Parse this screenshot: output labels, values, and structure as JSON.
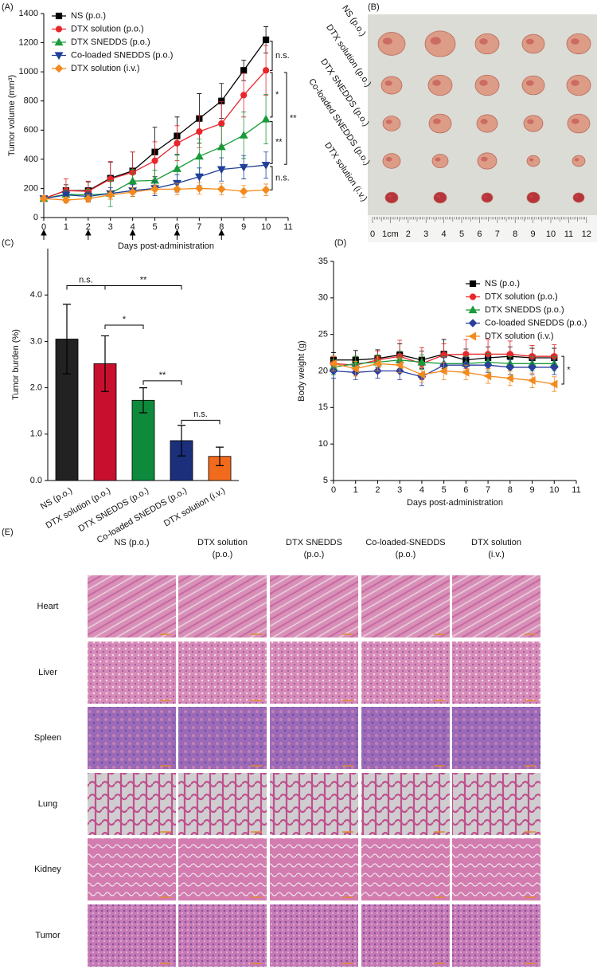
{
  "panel_labels": [
    "(A)",
    "(B)",
    "(C)",
    "(D)",
    "(E)"
  ],
  "chart_data": [
    {
      "type": "line",
      "x_label": "Days post-administration",
      "y_label": "Tumor volume (mm³)",
      "x": [
        0,
        1,
        2,
        3,
        4,
        5,
        6,
        7,
        8,
        9,
        10
      ],
      "xlim": [
        0,
        11
      ],
      "xticks": [
        0,
        1,
        2,
        3,
        4,
        5,
        6,
        7,
        8,
        9,
        10,
        11
      ],
      "ylim": [
        0,
        1400
      ],
      "yticks": [
        0,
        200,
        400,
        600,
        800,
        1000,
        1200,
        1400
      ],
      "series": [
        {
          "name": "NS (p.o.)",
          "color": "#000000",
          "marker": "square",
          "values": [
            130,
            185,
            185,
            270,
            320,
            450,
            560,
            680,
            800,
            1010,
            1220
          ],
          "errors": [
            20,
            40,
            60,
            110,
            130,
            170,
            130,
            170,
            120,
            70,
            90
          ]
        },
        {
          "name": "DTX solution (p.o.)",
          "color": "#e8262b",
          "marker": "circle",
          "values": [
            130,
            185,
            180,
            265,
            310,
            390,
            510,
            590,
            645,
            840,
            1010
          ],
          "errors": [
            20,
            80,
            70,
            120,
            140,
            130,
            120,
            110,
            150,
            150,
            170
          ]
        },
        {
          "name": "DTX SNEDDS (p.o.)",
          "color": "#1a9a3a",
          "marker": "triangle-up",
          "values": [
            130,
            160,
            155,
            165,
            250,
            255,
            335,
            420,
            485,
            565,
            675
          ],
          "errors": [
            20,
            30,
            40,
            90,
            80,
            70,
            100,
            120,
            140,
            160,
            170
          ]
        },
        {
          "name": "Co-loaded SNEDDS (p.o.)",
          "color": "#1f3f99",
          "marker": "triangle-down",
          "values": [
            130,
            155,
            145,
            165,
            185,
            200,
            235,
            280,
            330,
            345,
            360
          ],
          "errors": [
            20,
            30,
            30,
            40,
            40,
            50,
            60,
            60,
            80,
            80,
            90
          ]
        },
        {
          "name": "DTX solution (i.v.)",
          "color": "#f28a1e",
          "marker": "diamond",
          "values": [
            130,
            120,
            130,
            155,
            175,
            195,
            195,
            200,
            195,
            180,
            190
          ],
          "errors": [
            20,
            20,
            25,
            30,
            30,
            30,
            40,
            40,
            40,
            40,
            40
          ]
        }
      ],
      "dose_days": [
        0,
        2,
        4,
        6,
        8
      ],
      "brackets": [
        {
          "label": "n.s.",
          "y": [
            1210,
            1010
          ]
        },
        {
          "label": "*",
          "y": [
            995,
            690
          ]
        },
        {
          "label": "**",
          "y": [
            995,
            365
          ]
        },
        {
          "label": "**",
          "y": [
            660,
            370
          ]
        },
        {
          "label": "n.s.",
          "y": [
            350,
            190
          ]
        }
      ]
    },
    {
      "type": "bar",
      "y_label": "Tumor burden (%)",
      "categories": [
        "NS (p.o.)",
        "DTX solution (p.o.)",
        "DTX SNEDDS (p.o.)",
        "Co-loaded SNEDDS (p.o.)",
        "DTX solution (i.v.)"
      ],
      "values": [
        3.05,
        2.52,
        1.73,
        0.86,
        0.52
      ],
      "errors": [
        0.75,
        0.6,
        0.27,
        0.33,
        0.2
      ],
      "colors": [
        "#222222",
        "#c8102e",
        "#0f8a3c",
        "#1b2f7a",
        "#f26b1d"
      ],
      "ylim": [
        0,
        5
      ],
      "yticks": [
        {
          "value": 0,
          "label": "0.0"
        },
        {
          "value": 1,
          "label": "1.0"
        },
        {
          "value": 2,
          "label": "2.0"
        },
        {
          "value": 3,
          "label": "3.0"
        },
        {
          "value": 4,
          "label": "4.0"
        }
      ],
      "brackets": [
        {
          "label": "n.s.",
          "between": [
            0,
            1
          ],
          "y": 4.2
        },
        {
          "label": "**",
          "between": [
            1,
            3
          ],
          "y": 4.2
        },
        {
          "label": "*",
          "between": [
            1,
            2
          ],
          "y": 3.35
        },
        {
          "label": "**",
          "between": [
            2,
            3
          ],
          "y": 2.15
        },
        {
          "label": "n.s.",
          "between": [
            3,
            4
          ],
          "y": 1.3
        }
      ]
    },
    {
      "type": "line",
      "x_label": "Days post-administration",
      "y_label": "Body weight (g)",
      "x": [
        0,
        1,
        2,
        3,
        4,
        5,
        6,
        7,
        8,
        9,
        10
      ],
      "xlim": [
        0,
        11
      ],
      "xticks": [
        0,
        1,
        2,
        3,
        4,
        5,
        6,
        7,
        8,
        9,
        10,
        11
      ],
      "ylim": [
        5,
        35
      ],
      "yticks": [
        5,
        10,
        15,
        20,
        25,
        30,
        35
      ],
      "series": [
        {
          "name": "NS (p.o.)",
          "color": "#000000",
          "marker": "square",
          "values": [
            21.5,
            21.5,
            21.7,
            22.2,
            21.5,
            22.3,
            21.5,
            21.8,
            22,
            21.8,
            21.8
          ],
          "errors": [
            1,
            1.3,
            1.2,
            1.5,
            1.2,
            2,
            1.5,
            1.5,
            1.3,
            1.3,
            1.3
          ]
        },
        {
          "name": "DTX solution (p.o.)",
          "color": "#e8262b",
          "marker": "circle",
          "values": [
            21,
            20.8,
            21.5,
            22,
            21,
            22.2,
            22.3,
            22.3,
            22.3,
            22,
            22
          ],
          "errors": [
            1,
            1.2,
            1.2,
            2.2,
            2.2,
            1.5,
            2,
            2,
            1.8,
            1.5,
            1.6
          ]
        },
        {
          "name": "DTX SNEDDS (p.o.)",
          "color": "#1a9a3a",
          "marker": "triangle-up",
          "values": [
            20.5,
            21,
            21.2,
            21.5,
            21.2,
            21,
            21,
            21.2,
            21,
            21,
            21
          ],
          "errors": [
            1,
            1,
            1,
            1.2,
            1,
            1,
            1,
            1.2,
            1,
            1,
            1
          ]
        },
        {
          "name": "Co-loaded SNEDDS (p.o.)",
          "color": "#2a3f9e",
          "marker": "diamond",
          "values": [
            20,
            19.8,
            20,
            20,
            19.2,
            20.8,
            20.8,
            20.8,
            20.5,
            20.5,
            20.5
          ],
          "errors": [
            1,
            1,
            1,
            1.2,
            1.2,
            1,
            1,
            1,
            1,
            1,
            1
          ]
        },
        {
          "name": "DTX solution (i.v.)",
          "color": "#f28a1e",
          "marker": "triangle-left",
          "values": [
            21,
            20.3,
            21,
            20.8,
            19.5,
            20,
            19.8,
            19.3,
            19,
            18.7,
            18.2
          ],
          "errors": [
            1,
            1,
            1,
            1,
            1,
            1.2,
            1,
            1,
            1,
            1,
            1
          ]
        }
      ],
      "series_bracket": {
        "label": "*",
        "series": [
          1,
          4
        ]
      }
    }
  ],
  "photo": {
    "groups": [
      "NS (p.o.)",
      "DTX solution (p.o.)",
      "DTX SNEDDS (p.o.)",
      "Co-loaded SNEDDS (p.o.)",
      "DTX solution (i.v.)"
    ],
    "ruler": [
      "0",
      "1cm",
      "2",
      "3",
      "4",
      "5",
      "6",
      "7",
      "8",
      "9",
      "10",
      "11",
      "12"
    ]
  },
  "histology": {
    "columns": [
      [
        "NS (p.o.)"
      ],
      [
        "DTX solution",
        "(p.o.)"
      ],
      [
        "DTX SNEDDS",
        "(p.o.)"
      ],
      [
        "Co-loaded-SNEDDS",
        "(p.o.)"
      ],
      [
        "DTX solution",
        "(i.v.)"
      ]
    ],
    "rows": [
      "Heart",
      "Liver",
      "Spleen",
      "Lung",
      "Kidney",
      "Tumor"
    ]
  }
}
